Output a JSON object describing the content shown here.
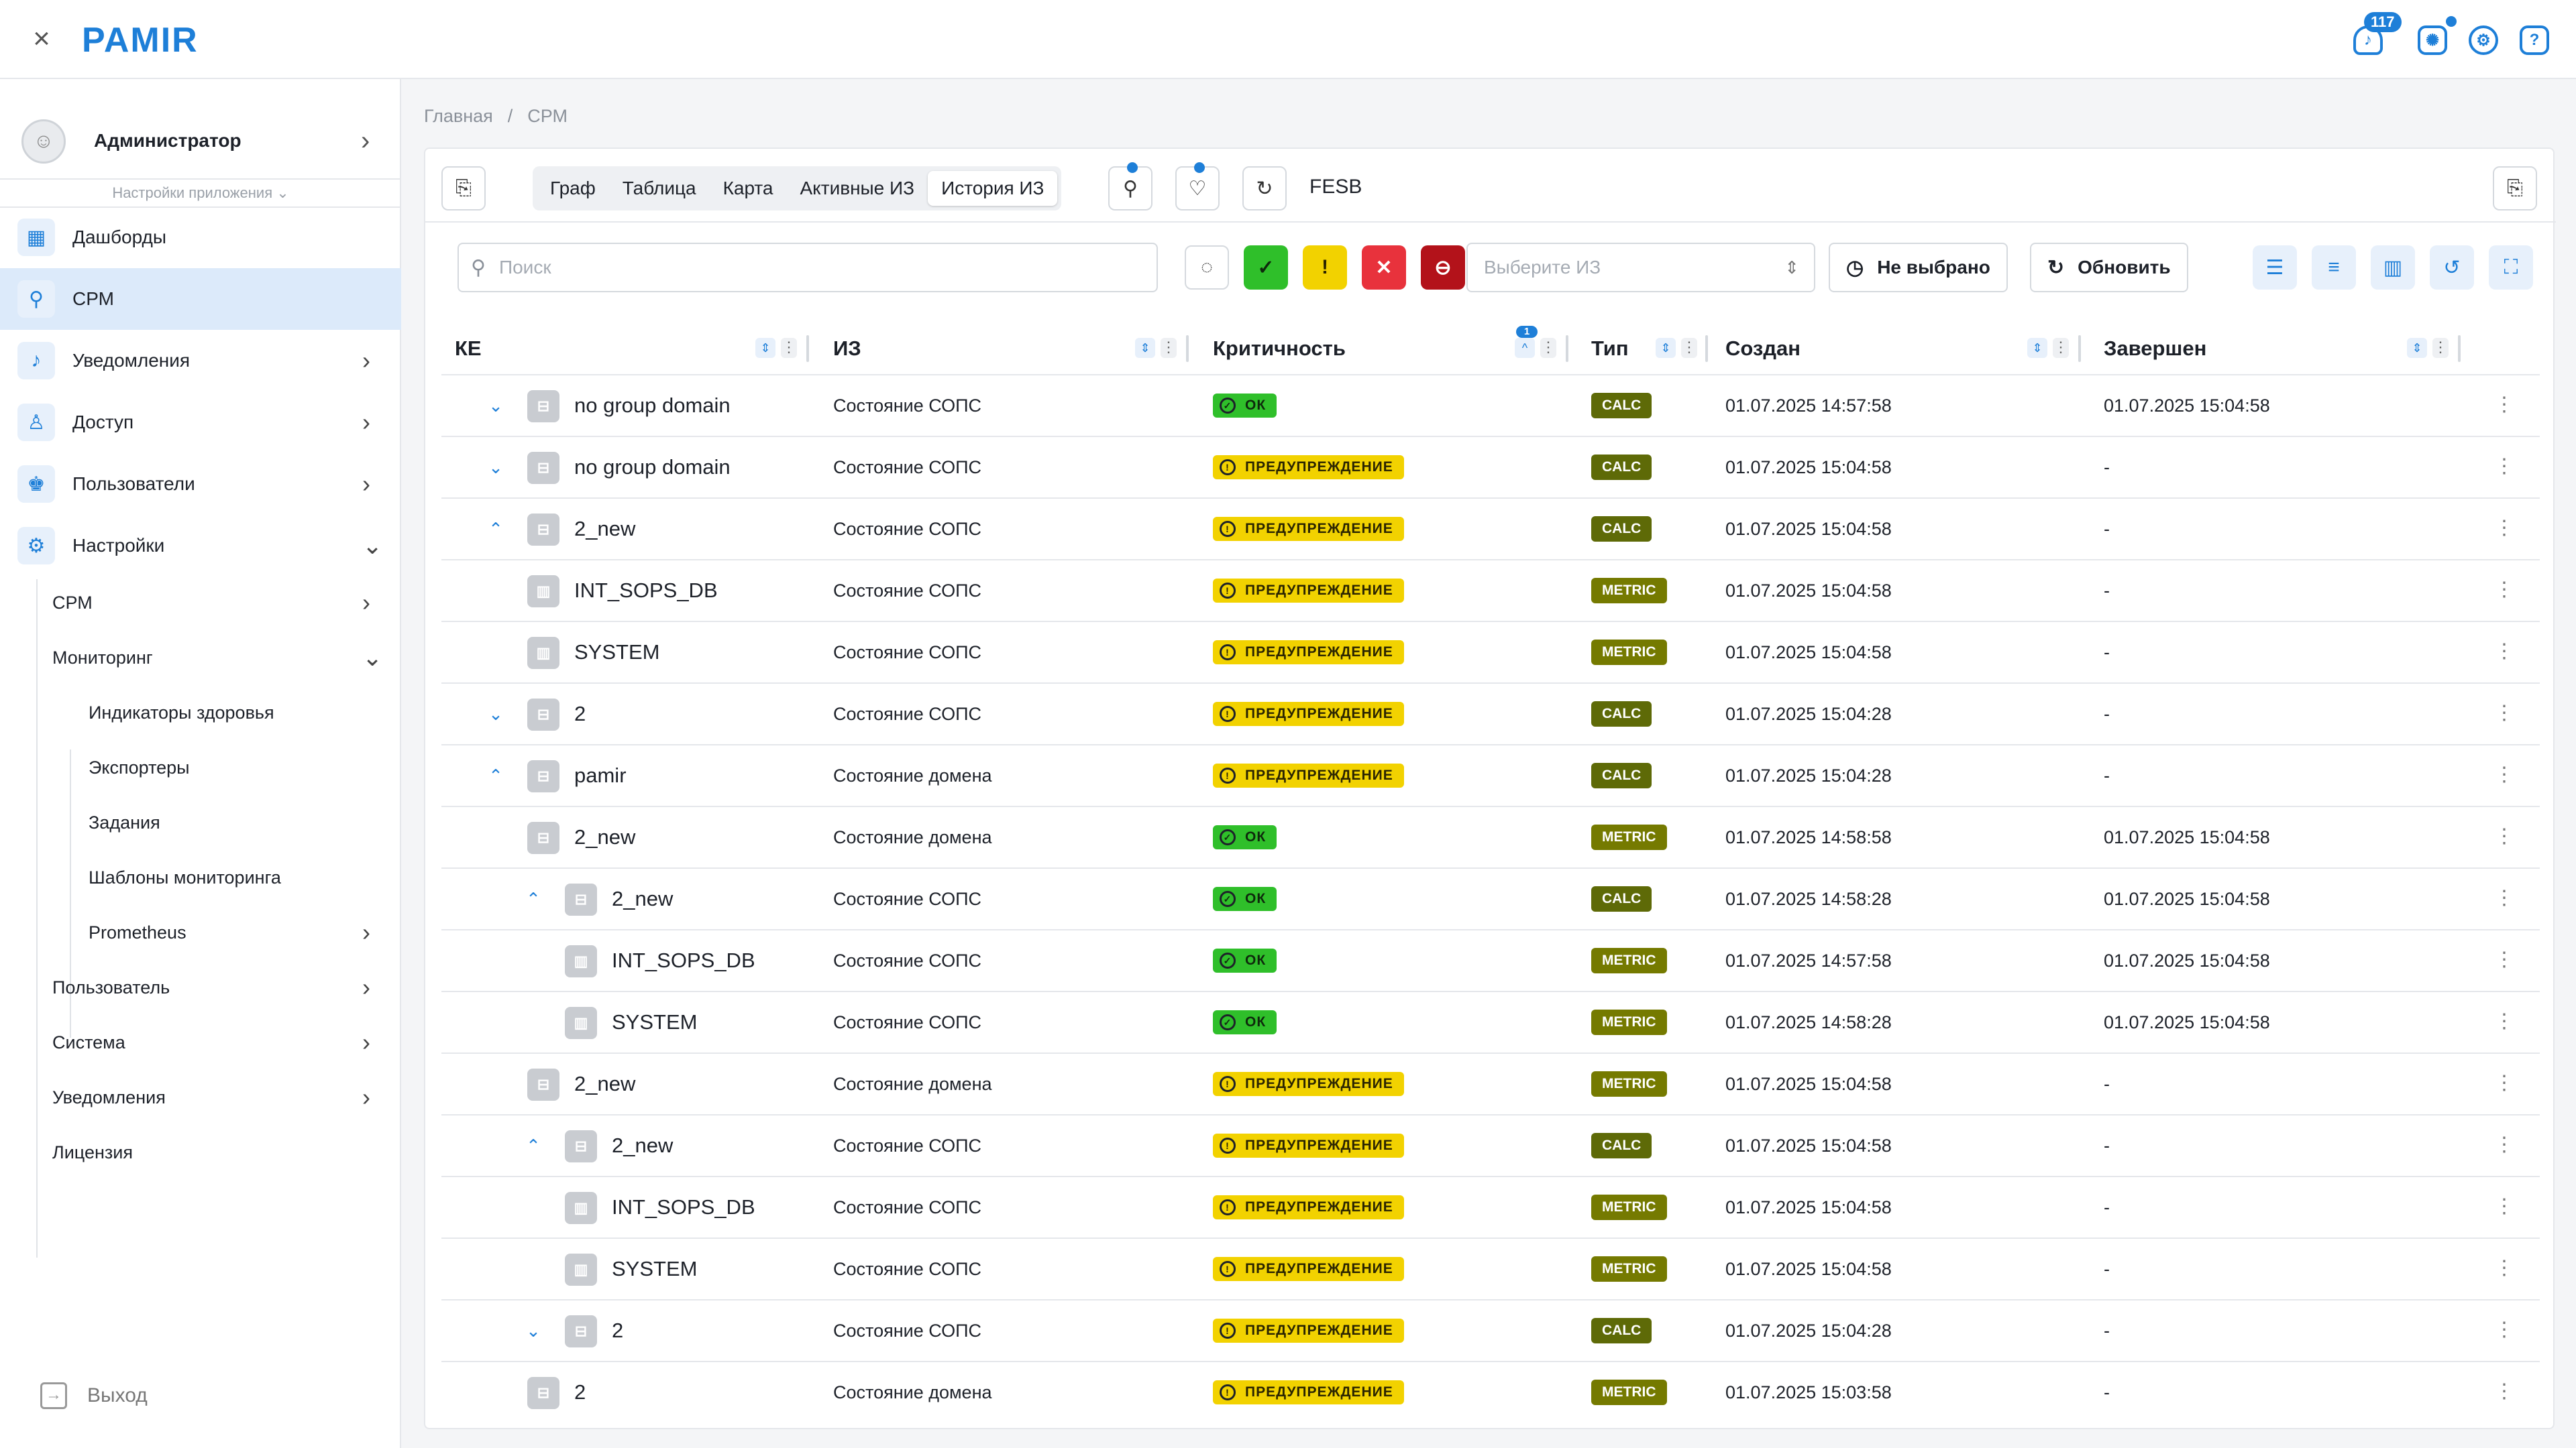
{
  "app": {
    "logo": "PAMIR",
    "close_icon": "×",
    "notifications_count": "117"
  },
  "topbar": {
    "icons": [
      "bell-icon",
      "alarm-icon",
      "gear-icon",
      "help-icon"
    ]
  },
  "sidebar": {
    "user": "Администратор",
    "app_settings": "Настройки приложения",
    "items": [
      {
        "label": "Дашборды",
        "icon": "dashboard-icon"
      },
      {
        "label": "СРМ",
        "icon": "cpm-icon"
      },
      {
        "label": "Уведомления",
        "icon": "bell-icon"
      },
      {
        "label": "Доступ",
        "icon": "access-icon"
      },
      {
        "label": "Пользователи",
        "icon": "users-icon"
      },
      {
        "label": "Настройки",
        "icon": "settings-icon"
      }
    ],
    "settings_sub": [
      {
        "label": "СРМ"
      },
      {
        "label": "Мониторинг"
      },
      {
        "label": "Индикаторы здоровья"
      },
      {
        "label": "Экспортеры"
      },
      {
        "label": "Задания"
      },
      {
        "label": "Шаблоны мониторинга"
      },
      {
        "label": "Prometheus"
      },
      {
        "label": "Пользователь"
      },
      {
        "label": "Система"
      },
      {
        "label": "Уведомления"
      },
      {
        "label": "Лицензия"
      }
    ],
    "logout": "Выход"
  },
  "breadcrumb": {
    "home": "Главная",
    "sep": "/",
    "current": "СРМ"
  },
  "tabs": [
    "Граф",
    "Таблица",
    "Карта",
    "Активные ИЗ",
    "История ИЗ"
  ],
  "selected_tab": "История ИЗ",
  "context_label": "FESB",
  "filters": {
    "search_placeholder": "Поиск",
    "select_placeholder": "Выберите ИЗ",
    "not_selected_label": "Не выбрано",
    "refresh_label": "Обновить",
    "severity_colors": {
      "ok": "#2fbf2a",
      "warning": "#f2d200",
      "critical": "#e8323c",
      "blocked": "#b3121a"
    }
  },
  "grid": {
    "columns": [
      "КЕ",
      "ИЗ",
      "Критичность",
      "Тип",
      "Создан",
      "Завершен"
    ],
    "sort_badge": "1",
    "rows": [
      {
        "expand": "v",
        "ke": "no group domain",
        "iz": "Состояние СОПС",
        "crit": "ОК",
        "sev": "ok",
        "type": "CALC",
        "created": "01.07.2025 14:57:58",
        "finished": "01.07.2025 15:04:58",
        "indent": 0,
        "icon": "group-icon"
      },
      {
        "expand": "v",
        "ke": "no group domain",
        "iz": "Состояние СОПС",
        "crit": "ПРЕДУПРЕЖДЕНИЕ",
        "sev": "warn",
        "type": "CALC",
        "created": "01.07.2025 15:04:58",
        "finished": "-",
        "indent": 0,
        "icon": "group-icon"
      },
      {
        "expand": "^",
        "ke": "2_new",
        "iz": "Состояние СОПС",
        "crit": "ПРЕДУПРЕЖДЕНИЕ",
        "sev": "warn",
        "type": "CALC",
        "created": "01.07.2025 15:04:58",
        "finished": "-",
        "indent": 0,
        "icon": "group-icon"
      },
      {
        "expand": "",
        "ke": "INT_SOPS_DB",
        "iz": "Состояние СОПС",
        "crit": "ПРЕДУПРЕЖДЕНИЕ",
        "sev": "warn",
        "type": "METRIC",
        "created": "01.07.2025 15:04:58",
        "finished": "-",
        "indent": 0,
        "icon": "metric-icon"
      },
      {
        "expand": "",
        "ke": "SYSTEM",
        "iz": "Состояние СОПС",
        "crit": "ПРЕДУПРЕЖДЕНИЕ",
        "sev": "warn",
        "type": "METRIC",
        "created": "01.07.2025 15:04:58",
        "finished": "-",
        "indent": 0,
        "icon": "metric-icon"
      },
      {
        "expand": "v",
        "ke": "2",
        "iz": "Состояние СОПС",
        "crit": "ПРЕДУПРЕЖДЕНИЕ",
        "sev": "warn",
        "type": "CALC",
        "created": "01.07.2025 15:04:28",
        "finished": "-",
        "indent": 0,
        "icon": "group-icon"
      },
      {
        "expand": "^",
        "ke": "pamir",
        "iz": "Состояние домена",
        "crit": "ПРЕДУПРЕЖДЕНИЕ",
        "sev": "warn",
        "type": "CALC",
        "created": "01.07.2025 15:04:28",
        "finished": "-",
        "indent": 0,
        "icon": "group-icon"
      },
      {
        "expand": "",
        "ke": "2_new",
        "iz": "Состояние домена",
        "crit": "ОК",
        "sev": "ok",
        "type": "METRIC",
        "created": "01.07.2025 14:58:58",
        "finished": "01.07.2025 15:04:58",
        "indent": 0,
        "icon": "group-icon"
      },
      {
        "expand": "^",
        "ke": "2_new",
        "iz": "Состояние СОПС",
        "crit": "ОК",
        "sev": "ok",
        "type": "CALC",
        "created": "01.07.2025 14:58:28",
        "finished": "01.07.2025 15:04:58",
        "indent": 1,
        "icon": "group-icon"
      },
      {
        "expand": "",
        "ke": "INT_SOPS_DB",
        "iz": "Состояние СОПС",
        "crit": "ОК",
        "sev": "ok",
        "type": "METRIC",
        "created": "01.07.2025 14:57:58",
        "finished": "01.07.2025 15:04:58",
        "indent": 1,
        "icon": "metric-icon"
      },
      {
        "expand": "",
        "ke": "SYSTEM",
        "iz": "Состояние СОПС",
        "crit": "ОК",
        "sev": "ok",
        "type": "METRIC",
        "created": "01.07.2025 14:58:28",
        "finished": "01.07.2025 15:04:58",
        "indent": 1,
        "icon": "metric-icon"
      },
      {
        "expand": "",
        "ke": "2_new",
        "iz": "Состояние домена",
        "crit": "ПРЕДУПРЕЖДЕНИЕ",
        "sev": "warn",
        "type": "METRIC",
        "created": "01.07.2025 15:04:58",
        "finished": "-",
        "indent": 0,
        "icon": "group-icon"
      },
      {
        "expand": "^",
        "ke": "2_new",
        "iz": "Состояние СОПС",
        "crit": "ПРЕДУПРЕЖДЕНИЕ",
        "sev": "warn",
        "type": "CALC",
        "created": "01.07.2025 15:04:58",
        "finished": "-",
        "indent": 1,
        "icon": "group-icon"
      },
      {
        "expand": "",
        "ke": "INT_SOPS_DB",
        "iz": "Состояние СОПС",
        "crit": "ПРЕДУПРЕЖДЕНИЕ",
        "sev": "warn",
        "type": "METRIC",
        "created": "01.07.2025 15:04:58",
        "finished": "-",
        "indent": 1,
        "icon": "metric-icon"
      },
      {
        "expand": "",
        "ke": "SYSTEM",
        "iz": "Состояние СОПС",
        "crit": "ПРЕДУПРЕЖДЕНИЕ",
        "sev": "warn",
        "type": "METRIC",
        "created": "01.07.2025 15:04:58",
        "finished": "-",
        "indent": 1,
        "icon": "metric-icon"
      },
      {
        "expand": "v",
        "ke": "2",
        "iz": "Состояние СОПС",
        "crit": "ПРЕДУПРЕЖДЕНИЕ",
        "sev": "warn",
        "type": "CALC",
        "created": "01.07.2025 15:04:28",
        "finished": "-",
        "indent": 1,
        "icon": "group-icon"
      },
      {
        "expand": "",
        "ke": "2",
        "iz": "Состояние домена",
        "crit": "ПРЕДУПРЕЖДЕНИЕ",
        "sev": "warn",
        "type": "METRIC",
        "created": "01.07.2025 15:03:58",
        "finished": "-",
        "indent": 0,
        "icon": "group-icon"
      }
    ]
  }
}
